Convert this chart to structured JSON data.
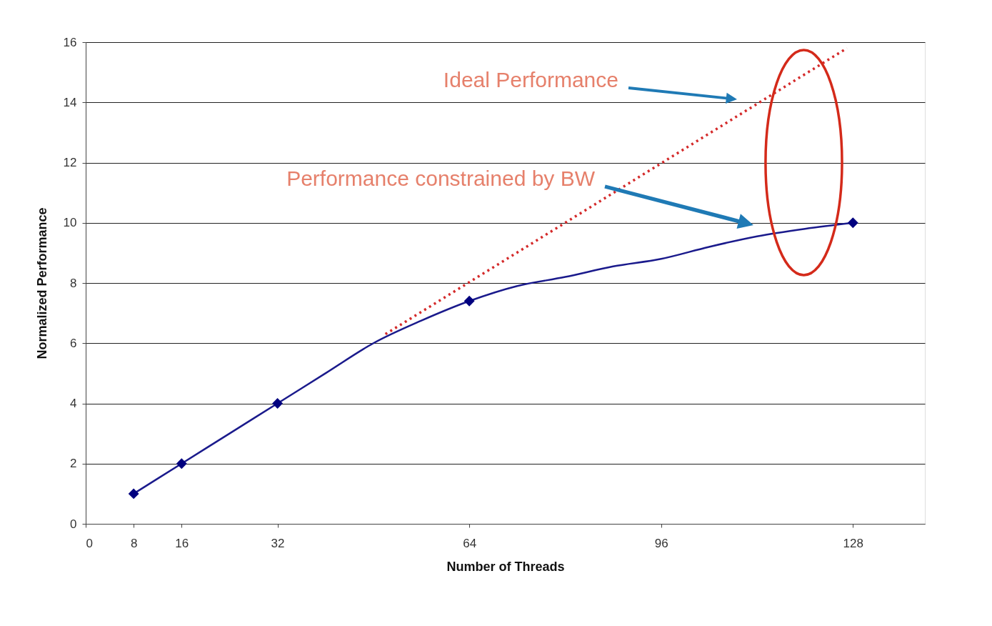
{
  "chart_data": {
    "type": "line",
    "xlabel": "Number of Threads",
    "ylabel": "Normalized Performance",
    "xlim": [
      0,
      140
    ],
    "xticks": [
      0,
      8,
      16,
      32,
      64,
      96,
      128
    ],
    "ylim": [
      0,
      16
    ],
    "yticks": [
      0,
      2,
      4,
      6,
      8,
      10,
      12,
      14,
      16
    ],
    "grid": "y",
    "series": [
      {
        "color": "#1a1a8c",
        "line_style": "solid",
        "marker": "none",
        "x": [
          8,
          16,
          24,
          32,
          40,
          48,
          56,
          64,
          72,
          80,
          88,
          96,
          104,
          112,
          120,
          128
        ],
        "values": [
          1,
          2,
          3,
          4,
          5,
          6,
          6.75,
          7.4,
          7.9,
          8.2,
          8.55,
          8.8,
          9.2,
          9.55,
          9.8,
          10
        ]
      },
      {
        "type": "scatter",
        "color": "#00007f",
        "marker": "diamond",
        "x": [
          8,
          16,
          32,
          64,
          128
        ],
        "values": [
          1,
          2,
          4,
          7.4,
          10
        ]
      },
      {
        "type": "line",
        "color": "#d42a2a",
        "line_style": "dotted",
        "marker": "none",
        "x": [
          50,
          127
        ],
        "values": [
          6.3,
          15.8
        ]
      }
    ],
    "annotations": [
      "Ideal Performance",
      "Performance constrained by BW"
    ]
  }
}
